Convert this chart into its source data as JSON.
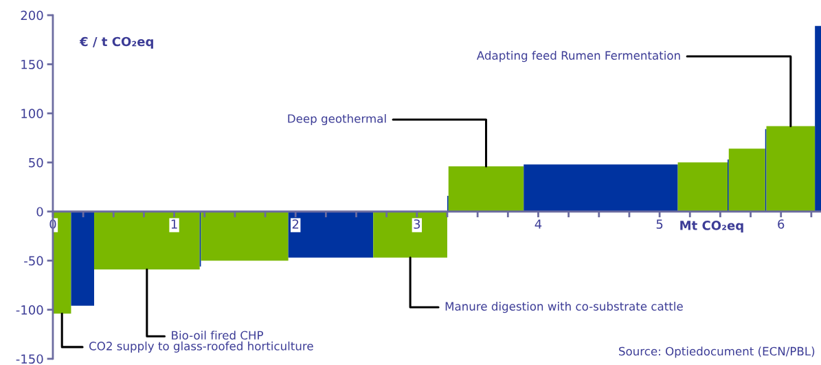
{
  "chart_data": {
    "type": "bar",
    "x": [
      0.075,
      0.245,
      0.775,
      1.215,
      1.58,
      2.29,
      2.945,
      3.255,
      3.57,
      4.515,
      5.355,
      5.565,
      5.72,
      5.875,
      6.08,
      6.305
    ],
    "values": [
      -104,
      -96,
      -59,
      -56,
      -50,
      -47,
      -47,
      16,
      46,
      48,
      50,
      53,
      64,
      84,
      87,
      189
    ],
    "colors": [
      "#7ab800",
      "#0033a0",
      "#7ab800",
      "#0033a0",
      "#7ab800",
      "#0033a0",
      "#7ab800",
      "#0033a0",
      "#7ab800",
      "#0033a0",
      "#7ab800",
      "#0033a0",
      "#7ab800",
      "#0033a0",
      "#7ab800",
      "#0033a0"
    ],
    "xlabel": "Mt CO₂eq",
    "ylabel": "€ / t CO₂eq",
    "xlim": [
      0,
      6.33
    ],
    "ylim": [
      -150,
      200
    ],
    "xticks": [
      0,
      {
        "value": 0.25,
        "label": null
      },
      {
        "value": 0.5,
        "label": null
      },
      {
        "value": 0.75,
        "label": null
      },
      1,
      {
        "value": 1.25,
        "label": null
      },
      {
        "value": 1.5,
        "label": null
      },
      {
        "value": 1.75,
        "label": null
      },
      2,
      {
        "value": 2.25,
        "label": null
      },
      {
        "value": 2.5,
        "label": null
      },
      {
        "value": 2.75,
        "label": null
      },
      3,
      {
        "value": 3.25,
        "label": null
      },
      {
        "value": 3.5,
        "label": null
      },
      {
        "value": 3.75,
        "label": null
      },
      4,
      {
        "value": 4.25,
        "label": null
      },
      {
        "value": 4.5,
        "label": null
      },
      {
        "value": 4.75,
        "label": null
      },
      5,
      {
        "value": 5.25,
        "label": null
      },
      {
        "value": 5.5,
        "label": null
      },
      {
        "value": 5.75,
        "label": null
      },
      6,
      {
        "value": 6.25,
        "label": null
      }
    ],
    "yticks": [
      -150,
      -100,
      -50,
      0,
      50,
      100,
      150,
      200
    ],
    "grid": false,
    "legend": false,
    "annotations": [
      {
        "text": "Deep geothermal",
        "x": 3.57,
        "y": 46
      },
      {
        "text": "Adapting feed Rumen Fermentation",
        "x": 6.08,
        "y": 87
      },
      {
        "text": "Manure digestion with co-substrate cattle",
        "x": 2.945,
        "y": -47
      },
      {
        "text": "Bio-oil fired CHP",
        "x": 0.775,
        "y": -59
      },
      {
        "text": "CO2 supply to glass-roofed horticulture",
        "x": 0.075,
        "y": -104
      },
      "Source: Optiedocument (ECN/PBL)"
    ]
  }
}
